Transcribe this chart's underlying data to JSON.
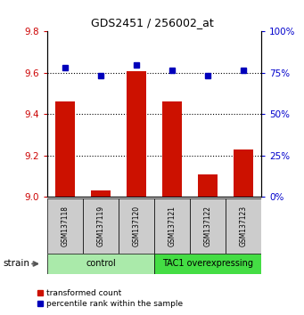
{
  "title": "GDS2451 / 256002_at",
  "samples": [
    "GSM137118",
    "GSM137119",
    "GSM137120",
    "GSM137121",
    "GSM137122",
    "GSM137123"
  ],
  "red_values": [
    9.46,
    9.03,
    9.61,
    9.46,
    9.11,
    9.23
  ],
  "blue_values_right": [
    78.0,
    73.5,
    80.0,
    76.5,
    73.5,
    76.5
  ],
  "ylim_left": [
    9.0,
    9.8
  ],
  "ylim_right": [
    0,
    100
  ],
  "yticks_left": [
    9.0,
    9.2,
    9.4,
    9.6,
    9.8
  ],
  "yticks_right": [
    0,
    25,
    50,
    75,
    100
  ],
  "groups": [
    {
      "label": "control",
      "indices": [
        0,
        1,
        2
      ],
      "color": "#aaeaaa"
    },
    {
      "label": "TAC1 overexpressing",
      "indices": [
        3,
        4,
        5
      ],
      "color": "#44dd44"
    }
  ],
  "bar_color": "#cc1100",
  "dot_color": "#0000bb",
  "bar_width": 0.55,
  "legend_labels": [
    "transformed count",
    "percentile rank within the sample"
  ],
  "strain_label": "strain",
  "left_tick_color": "#cc0000",
  "right_tick_color": "#0000cc",
  "gridline_y": [
    9.2,
    9.4,
    9.6
  ],
  "sample_box_color": "#cccccc"
}
